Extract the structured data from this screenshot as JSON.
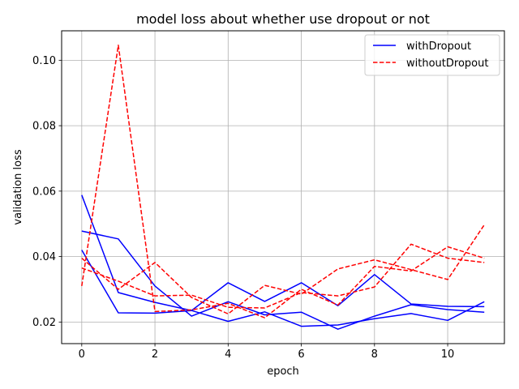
{
  "chart_data": {
    "type": "line",
    "title": "model loss about whether use dropout or not",
    "xlabel": "epoch",
    "ylabel": "validation loss",
    "xlim": [
      -0.55,
      11.55
    ],
    "ylim": [
      0.0134,
      0.109
    ],
    "xticks": [
      0,
      2,
      4,
      6,
      8,
      10
    ],
    "xtick_labels": [
      "0",
      "2",
      "4",
      "6",
      "8",
      "10"
    ],
    "yticks": [
      0.02,
      0.04,
      0.06,
      0.08,
      0.1
    ],
    "ytick_labels": [
      "0.02",
      "0.04",
      "0.06",
      "0.08",
      "0.10"
    ],
    "grid": true,
    "legend": {
      "position": "top-right",
      "entries": [
        {
          "label": "withDropout",
          "color": "#0000ff",
          "style": "solid"
        },
        {
          "label": "withoutDropout",
          "color": "#ff0000",
          "style": "dashed"
        }
      ]
    },
    "x": [
      0,
      1,
      2,
      3,
      4,
      5,
      6,
      7,
      8,
      9,
      10,
      11
    ],
    "series": [
      {
        "name": "withDropout",
        "color": "#0000ff",
        "style": "solid",
        "values": [
          0.0588,
          0.029,
          0.026,
          0.0235,
          0.032,
          0.0263,
          0.032,
          0.025,
          0.0345,
          0.0255,
          0.0248,
          0.0247
        ]
      },
      {
        "name": "withDropout",
        "color": "#0000ff",
        "style": "solid",
        "values": [
          0.0478,
          0.0454,
          0.031,
          0.0218,
          0.0262,
          0.0222,
          0.023,
          0.0178,
          0.0218,
          0.0253,
          0.0238,
          0.023
        ]
      },
      {
        "name": "withDropout",
        "color": "#0000ff",
        "style": "solid",
        "values": [
          0.042,
          0.0228,
          0.0227,
          0.0235,
          0.0202,
          0.0231,
          0.0187,
          0.0191,
          0.021,
          0.0226,
          0.0205,
          0.0262
        ]
      },
      {
        "name": "withoutDropout",
        "color": "#ff0000",
        "style": "dashed",
        "values": [
          0.031,
          0.1046,
          0.0232,
          0.0237,
          0.0257,
          0.0213,
          0.03,
          0.0252,
          0.037,
          0.0356,
          0.043,
          0.0395
        ]
      },
      {
        "name": "withoutDropout",
        "color": "#ff0000",
        "style": "dashed",
        "values": [
          0.0395,
          0.03,
          0.0382,
          0.0275,
          0.0225,
          0.0312,
          0.0285,
          0.0362,
          0.039,
          0.036,
          0.033,
          0.0497
        ]
      },
      {
        "name": "withoutDropout",
        "color": "#ff0000",
        "style": "dashed",
        "values": [
          0.0365,
          0.0325,
          0.028,
          0.0282,
          0.0245,
          0.0243,
          0.029,
          0.028,
          0.0307,
          0.0438,
          0.0395,
          0.0382
        ]
      }
    ]
  }
}
